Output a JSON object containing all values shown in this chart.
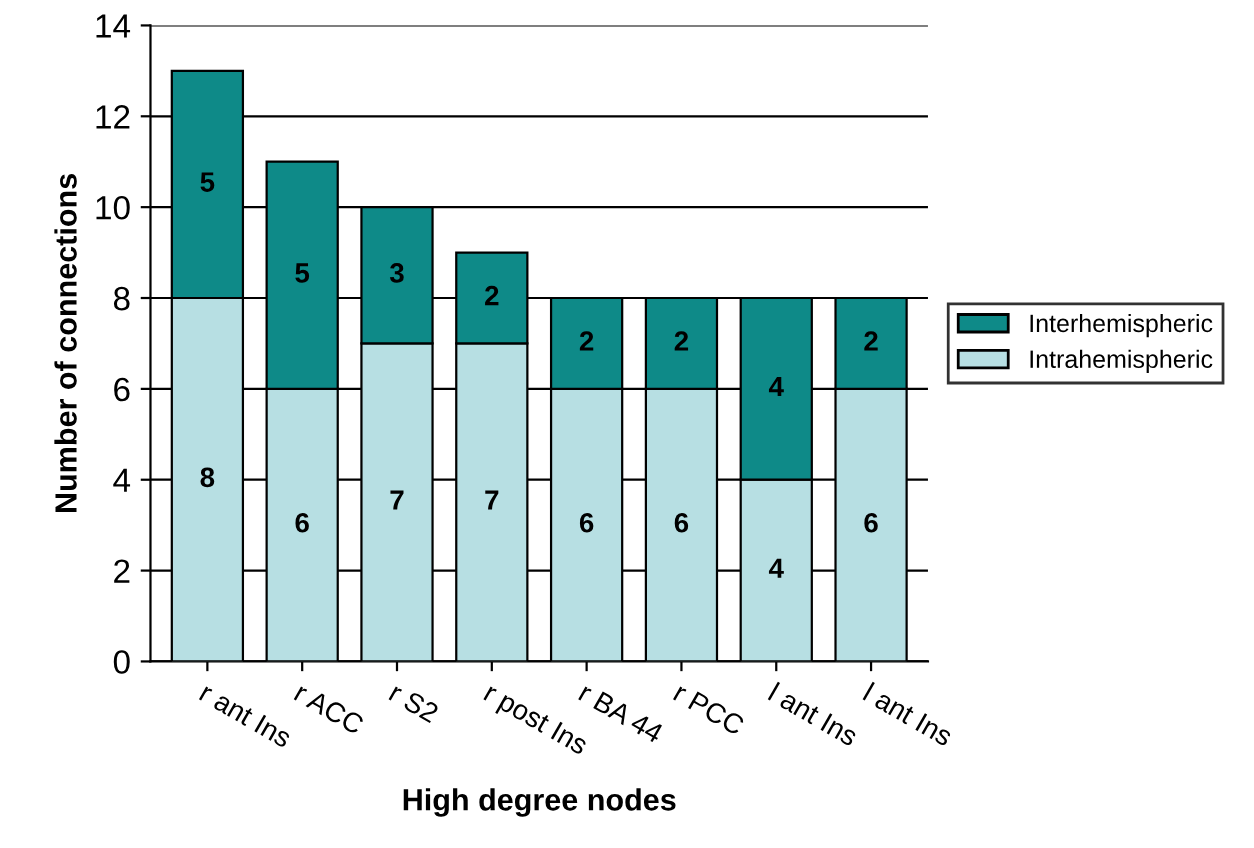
{
  "chart_data": {
    "type": "bar",
    "stacked": true,
    "xlabel": "High degree nodes",
    "ylabel": "Number of connections",
    "categories": [
      "r ant Ins",
      "r ACC",
      "r S2",
      "r post Ins",
      "r BA 44",
      "r PCC",
      "l ant Ins",
      "l ant Ins"
    ],
    "series": [
      {
        "name": "Intrahemispheric",
        "color": "#b7dfe3",
        "values": [
          8,
          6,
          7,
          7,
          6,
          6,
          4,
          6
        ]
      },
      {
        "name": "Interhemispheric",
        "color": "#0e8a88",
        "values": [
          5,
          5,
          3,
          2,
          2,
          2,
          4,
          2
        ]
      }
    ],
    "ylim": [
      0,
      14
    ],
    "yticks": [
      0,
      2,
      4,
      6,
      8,
      10,
      12,
      14
    ],
    "grid": "y",
    "legend": "right",
    "data_labels": true
  }
}
